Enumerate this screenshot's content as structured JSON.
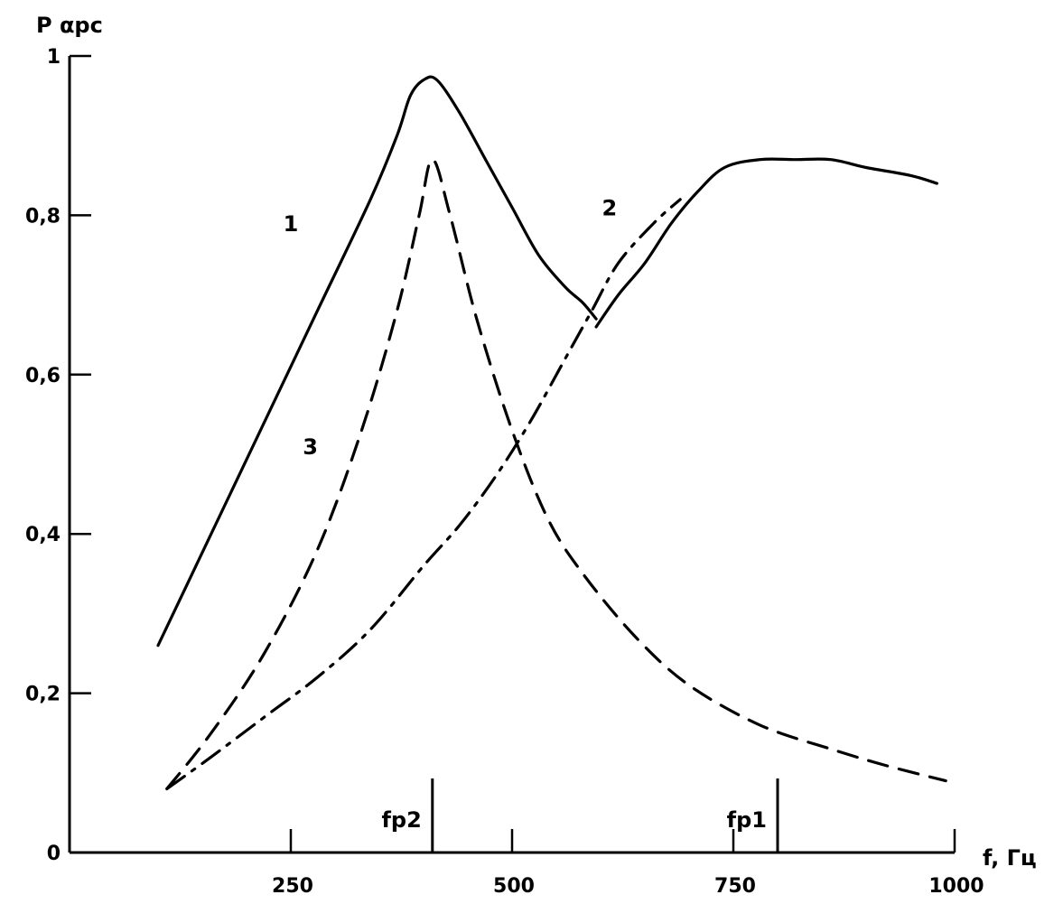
{
  "chart_data": {
    "type": "line",
    "ylabel": "P αpc",
    "xlabel": "f, Гц",
    "xlim": [
      0,
      1000
    ],
    "ylim": [
      0,
      1
    ],
    "grid": false,
    "x_ticks": [
      {
        "value": 250,
        "label": "250"
      },
      {
        "value": 500,
        "label": "500"
      },
      {
        "value": 750,
        "label": "750"
      },
      {
        "value": 1000,
        "label": "1000"
      }
    ],
    "y_ticks": [
      {
        "value": 0,
        "label": "0"
      },
      {
        "value": 0.2,
        "label": "0,2"
      },
      {
        "value": 0.4,
        "label": "0,4"
      },
      {
        "value": 0.6,
        "label": "0,6"
      },
      {
        "value": 0.8,
        "label": "0,8"
      },
      {
        "value": 1,
        "label": "1"
      }
    ],
    "markers": [
      {
        "x": 410,
        "label": "fp2"
      },
      {
        "x": 800,
        "label": "fp1"
      }
    ],
    "series": [
      {
        "name": "1",
        "style": "solid",
        "label_at": [
          250,
          0.78
        ],
        "x": [
          100,
          160,
          220,
          280,
          340,
          370,
          385,
          400,
          415,
          440,
          470,
          500,
          530,
          560,
          580,
          595
        ],
        "y": [
          0.26,
          0.4,
          0.54,
          0.68,
          0.82,
          0.9,
          0.95,
          0.97,
          0.97,
          0.93,
          0.87,
          0.81,
          0.75,
          0.71,
          0.69,
          0.67
        ]
      },
      {
        "name": "2",
        "style": "solid",
        "label_at": [
          610,
          0.8
        ],
        "x": [
          595,
          620,
          650,
          680,
          710,
          740,
          780,
          820,
          860,
          900,
          950,
          980
        ],
        "y": [
          0.66,
          0.7,
          0.74,
          0.79,
          0.83,
          0.86,
          0.87,
          0.87,
          0.87,
          0.86,
          0.85,
          0.84
        ]
      },
      {
        "name": "3",
        "style": "dashed",
        "label_at": [
          272,
          0.5
        ],
        "x": [
          110,
          160,
          220,
          280,
          330,
          370,
          395,
          410,
          430,
          460,
          500,
          540,
          580,
          640,
          700,
          780,
          860,
          920,
          990
        ],
        "y": [
          0.08,
          0.15,
          0.25,
          0.38,
          0.53,
          0.68,
          0.8,
          0.87,
          0.8,
          0.67,
          0.53,
          0.42,
          0.35,
          0.27,
          0.21,
          0.16,
          0.13,
          0.11,
          0.09
        ]
      },
      {
        "name": "",
        "style": "dash-dot",
        "x": [
          110,
          160,
          220,
          280,
          340,
          400,
          440,
          480,
          520,
          560,
          590,
          620,
          660,
          690
        ],
        "y": [
          0.08,
          0.12,
          0.17,
          0.22,
          0.28,
          0.36,
          0.41,
          0.47,
          0.54,
          0.62,
          0.68,
          0.74,
          0.79,
          0.82
        ]
      }
    ]
  }
}
